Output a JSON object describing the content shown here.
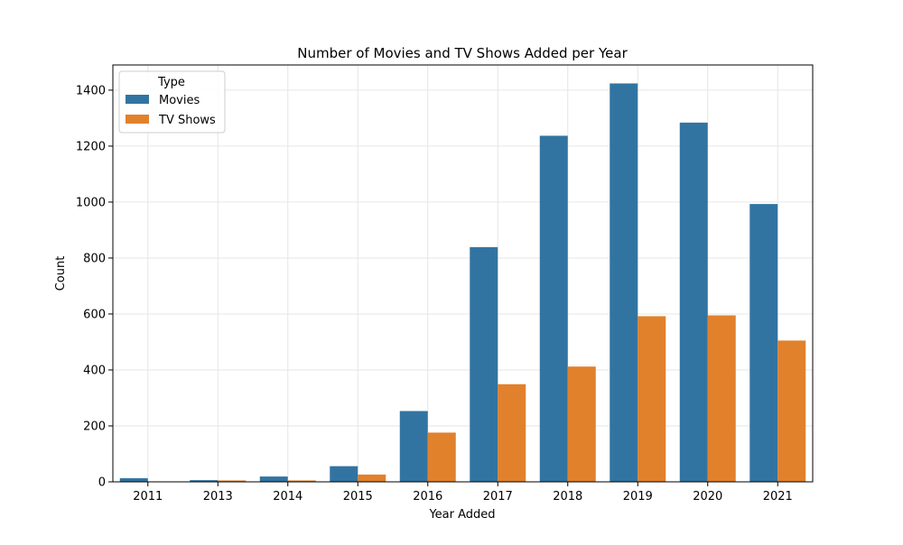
{
  "chart_data": {
    "type": "bar",
    "title": "Number of Movies and TV Shows Added per Year",
    "xlabel": "Year Added",
    "ylabel": "Count",
    "categories": [
      "2011",
      "2013",
      "2014",
      "2015",
      "2016",
      "2017",
      "2018",
      "2019",
      "2020",
      "2021"
    ],
    "series": [
      {
        "name": "Movies",
        "values": [
          13,
          6,
          19,
          56,
          253,
          839,
          1237,
          1424,
          1284,
          993
        ]
      },
      {
        "name": "TV Shows",
        "values": [
          0,
          5,
          5,
          26,
          176,
          349,
          412,
          592,
          595,
          505
        ]
      }
    ],
    "ylim": [
      0,
      1490
    ],
    "yticks": [
      0,
      200,
      400,
      600,
      800,
      1000,
      1200,
      1400
    ],
    "grid": true,
    "legend": {
      "title": "Type",
      "position": "top-left"
    },
    "colors": {
      "Movies": "#3274a1",
      "TV Shows": "#e1812c",
      "grid": "#e6e6e6"
    }
  }
}
